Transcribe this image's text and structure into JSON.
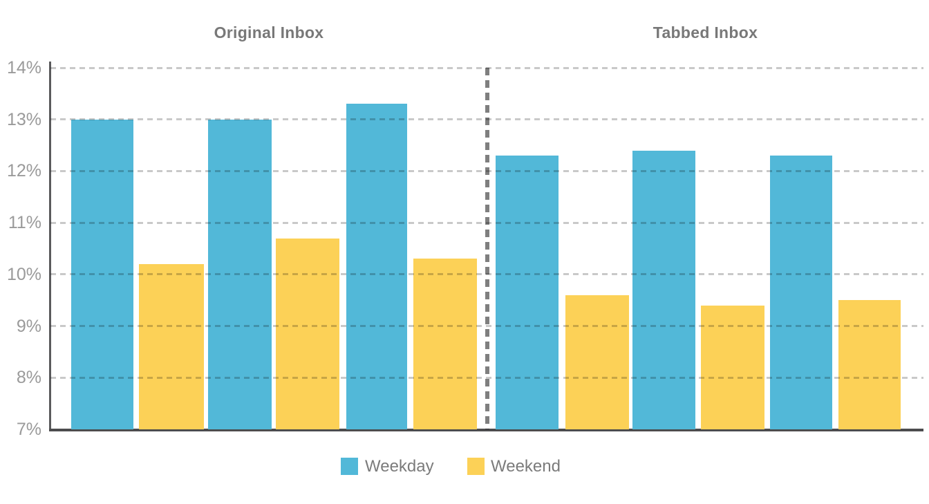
{
  "chart_data": {
    "type": "bar",
    "y_unit": "percent",
    "ylim": [
      7,
      14
    ],
    "yticks": [
      "14%",
      "13%",
      "12%",
      "11%",
      "10%",
      "9%",
      "8%",
      "7%"
    ],
    "grid": "horizontal-dashed",
    "divider": "vertical-dashed-between-sections",
    "legend": {
      "position": "bottom",
      "entries": [
        {
          "name": "weekday",
          "label": "Weekday",
          "color": "#52B8D8"
        },
        {
          "name": "weekend",
          "label": "Weekend",
          "color": "#FCD157"
        }
      ]
    },
    "sections": [
      {
        "title": "Original Inbox",
        "pairs": [
          {
            "weekday": 13.0,
            "weekend": 10.2
          },
          {
            "weekday": 13.0,
            "weekend": 10.7
          },
          {
            "weekday": 13.3,
            "weekend": 10.3
          }
        ]
      },
      {
        "title": "Tabbed Inbox",
        "pairs": [
          {
            "weekday": 12.3,
            "weekend": 9.6
          },
          {
            "weekday": 12.4,
            "weekend": 9.4
          },
          {
            "weekday": 12.3,
            "weekend": 9.5
          }
        ]
      }
    ],
    "colors": {
      "axis": "#4c4c4e",
      "tick_label": "#9a9a9a",
      "section_title": "#787878",
      "legend_label": "#7b7b7b"
    }
  }
}
